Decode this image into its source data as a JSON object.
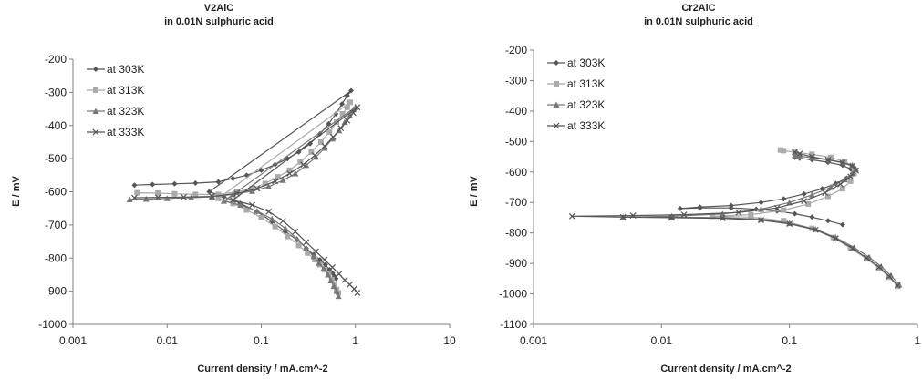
{
  "chart_data": [
    {
      "type": "line",
      "title": "V2AlC",
      "subtitle": "in 0.01N sulphuric acid",
      "xlabel": "Current density / mA.cm^-2",
      "ylabel": "E / mV",
      "xscale": "log",
      "xlim": [
        0.001,
        10
      ],
      "ylim": [
        -1000,
        -200
      ],
      "x_ticks": [
        "0.001",
        "0.01",
        "0.1",
        "1",
        "10"
      ],
      "y_ticks": [
        "-1000",
        "-900",
        "-800",
        "-700",
        "-600",
        "-500",
        "-400",
        "-300",
        "-200"
      ],
      "grid": false,
      "legend_position": "top-left",
      "series": [
        {
          "name": "at 303K",
          "color": "#555555",
          "marker": "diamond",
          "x": [
            0.0045,
            0.007,
            0.012,
            0.02,
            0.035,
            0.05,
            0.07,
            0.1,
            0.14,
            0.19,
            0.25,
            0.33,
            0.42,
            0.52,
            0.62,
            0.72,
            0.82,
            0.9,
            0.028,
            0.04,
            0.06,
            0.09,
            0.13,
            0.18,
            0.24,
            0.3,
            0.36,
            0.42,
            0.48,
            0.53,
            0.57,
            0.6,
            0.62
          ],
          "y": [
            -580,
            -578,
            -576,
            -574,
            -570,
            -560,
            -550,
            -535,
            -518,
            -500,
            -480,
            -455,
            -425,
            -395,
            -365,
            -335,
            -310,
            -295,
            -600,
            -615,
            -635,
            -660,
            -690,
            -720,
            -745,
            -770,
            -790,
            -805,
            -820,
            -835,
            -845,
            -855,
            -862
          ]
        },
        {
          "name": "at 313K",
          "color": "#aaaaaa",
          "marker": "square",
          "x": [
            0.0048,
            0.008,
            0.012,
            0.02,
            0.035,
            0.055,
            0.08,
            0.11,
            0.15,
            0.2,
            0.26,
            0.34,
            0.43,
            0.53,
            0.63,
            0.73,
            0.82,
            0.88,
            0.035,
            0.05,
            0.07,
            0.1,
            0.14,
            0.19,
            0.25,
            0.31,
            0.37,
            0.42,
            0.47,
            0.52,
            0.56,
            0.6,
            0.63,
            0.66
          ],
          "y": [
            -603,
            -604,
            -606,
            -608,
            -608,
            -600,
            -590,
            -575,
            -555,
            -535,
            -510,
            -480,
            -450,
            -420,
            -390,
            -365,
            -345,
            -330,
            -620,
            -635,
            -655,
            -678,
            -705,
            -735,
            -762,
            -785,
            -805,
            -820,
            -835,
            -850,
            -865,
            -880,
            -895,
            -905
          ]
        },
        {
          "name": "at 323K",
          "color": "#777777",
          "marker": "triangle",
          "x": [
            0.004,
            0.006,
            0.01,
            0.018,
            0.03,
            0.05,
            0.08,
            0.12,
            0.17,
            0.23,
            0.3,
            0.38,
            0.47,
            0.57,
            0.67,
            0.77,
            0.87,
            0.95,
            1.0,
            0.04,
            0.06,
            0.09,
            0.13,
            0.18,
            0.24,
            0.3,
            0.36,
            0.41,
            0.46,
            0.51,
            0.55,
            0.59,
            0.63,
            0.66
          ],
          "y": [
            -623,
            -622,
            -620,
            -618,
            -615,
            -608,
            -598,
            -585,
            -565,
            -545,
            -520,
            -495,
            -468,
            -440,
            -415,
            -390,
            -370,
            -352,
            -345,
            -628,
            -640,
            -658,
            -682,
            -710,
            -742,
            -770,
            -795,
            -815,
            -832,
            -850,
            -868,
            -885,
            -900,
            -915
          ]
        },
        {
          "name": "at 333K",
          "color": "#555555",
          "marker": "x",
          "x": [
            0.0045,
            0.008,
            0.015,
            0.03,
            0.055,
            0.09,
            0.14,
            0.2,
            0.28,
            0.37,
            0.47,
            0.58,
            0.7,
            0.82,
            0.95,
            1.05,
            0.05,
            0.08,
            0.12,
            0.17,
            0.23,
            0.3,
            0.38,
            0.47,
            0.57,
            0.67,
            0.77,
            0.87,
            0.97,
            1.05
          ],
          "y": [
            -618,
            -617,
            -616,
            -614,
            -605,
            -590,
            -568,
            -545,
            -518,
            -490,
            -462,
            -435,
            -408,
            -385,
            -362,
            -345,
            -625,
            -640,
            -660,
            -688,
            -720,
            -752,
            -780,
            -805,
            -828,
            -848,
            -866,
            -880,
            -893,
            -905
          ]
        }
      ]
    },
    {
      "type": "line",
      "title": "Cr2AlC",
      "subtitle": "in 0.01N sulphuric acid",
      "xlabel": "Current density / mA.cm^-2",
      "ylabel": "E / mV",
      "xscale": "log",
      "xlim": [
        0.001,
        1
      ],
      "ylim": [
        -1100,
        -200
      ],
      "x_ticks": [
        "0.001",
        "0.01",
        "0.1",
        "1"
      ],
      "y_ticks": [
        "-1100",
        "-1000",
        "-900",
        "-800",
        "-700",
        "-600",
        "-500",
        "-400",
        "-300",
        "-200"
      ],
      "grid": false,
      "legend_position": "top-left",
      "series": [
        {
          "name": "at 303K",
          "color": "#555555",
          "marker": "diamond",
          "x": [
            0.26,
            0.2,
            0.15,
            0.11,
            0.08,
            0.055,
            0.035,
            0.02,
            0.014,
            0.02,
            0.035,
            0.06,
            0.09,
            0.13,
            0.18,
            0.23,
            0.28,
            0.31,
            0.3,
            0.26,
            0.2,
            0.15,
            0.12,
            0.11
          ],
          "y": [
            -773,
            -760,
            -748,
            -737,
            -728,
            -722,
            -718,
            -718,
            -720,
            -715,
            -710,
            -700,
            -688,
            -672,
            -655,
            -638,
            -620,
            -605,
            -590,
            -578,
            -568,
            -560,
            -555,
            -552
          ]
        },
        {
          "name": "at 313K",
          "color": "#aaaaaa",
          "marker": "square",
          "x": [
            0.7,
            0.6,
            0.5,
            0.4,
            0.3,
            0.22,
            0.15,
            0.09,
            0.05,
            0.025,
            0.05,
            0.09,
            0.14,
            0.2,
            0.26,
            0.3,
            0.32,
            0.31,
            0.27,
            0.21,
            0.15,
            0.11,
            0.09,
            0.085
          ],
          "y": [
            -975,
            -945,
            -915,
            -885,
            -850,
            -815,
            -785,
            -760,
            -748,
            -745,
            -740,
            -725,
            -705,
            -680,
            -655,
            -630,
            -605,
            -582,
            -566,
            -552,
            -542,
            -535,
            -530,
            -528
          ]
        },
        {
          "name": "at 323K",
          "color": "#777777",
          "marker": "triangle",
          "x": [
            0.72,
            0.62,
            0.52,
            0.42,
            0.32,
            0.23,
            0.16,
            0.1,
            0.06,
            0.03,
            0.012,
            0.005,
            0.012,
            0.03,
            0.06,
            0.1,
            0.15,
            0.21,
            0.27,
            0.31,
            0.33,
            0.31,
            0.26,
            0.2,
            0.15,
            0.12,
            0.11
          ],
          "y": [
            -970,
            -940,
            -910,
            -880,
            -848,
            -815,
            -788,
            -768,
            -755,
            -750,
            -748,
            -748,
            -745,
            -738,
            -722,
            -700,
            -675,
            -650,
            -625,
            -605,
            -590,
            -578,
            -568,
            -560,
            -553,
            -548,
            -545
          ]
        },
        {
          "name": "at 333K",
          "color": "#555555",
          "marker": "x",
          "x": [
            0.7,
            0.6,
            0.5,
            0.4,
            0.31,
            0.23,
            0.16,
            0.1,
            0.06,
            0.03,
            0.012,
            0.005,
            0.002,
            0.006,
            0.015,
            0.04,
            0.08,
            0.13,
            0.19,
            0.25,
            0.3,
            0.33,
            0.31,
            0.26,
            0.2,
            0.15,
            0.12,
            0.11
          ],
          "y": [
            -972,
            -942,
            -912,
            -882,
            -850,
            -818,
            -790,
            -770,
            -758,
            -752,
            -750,
            -748,
            -745,
            -743,
            -740,
            -733,
            -718,
            -695,
            -668,
            -640,
            -615,
            -595,
            -580,
            -570,
            -560,
            -550,
            -540,
            -535
          ]
        }
      ]
    }
  ]
}
